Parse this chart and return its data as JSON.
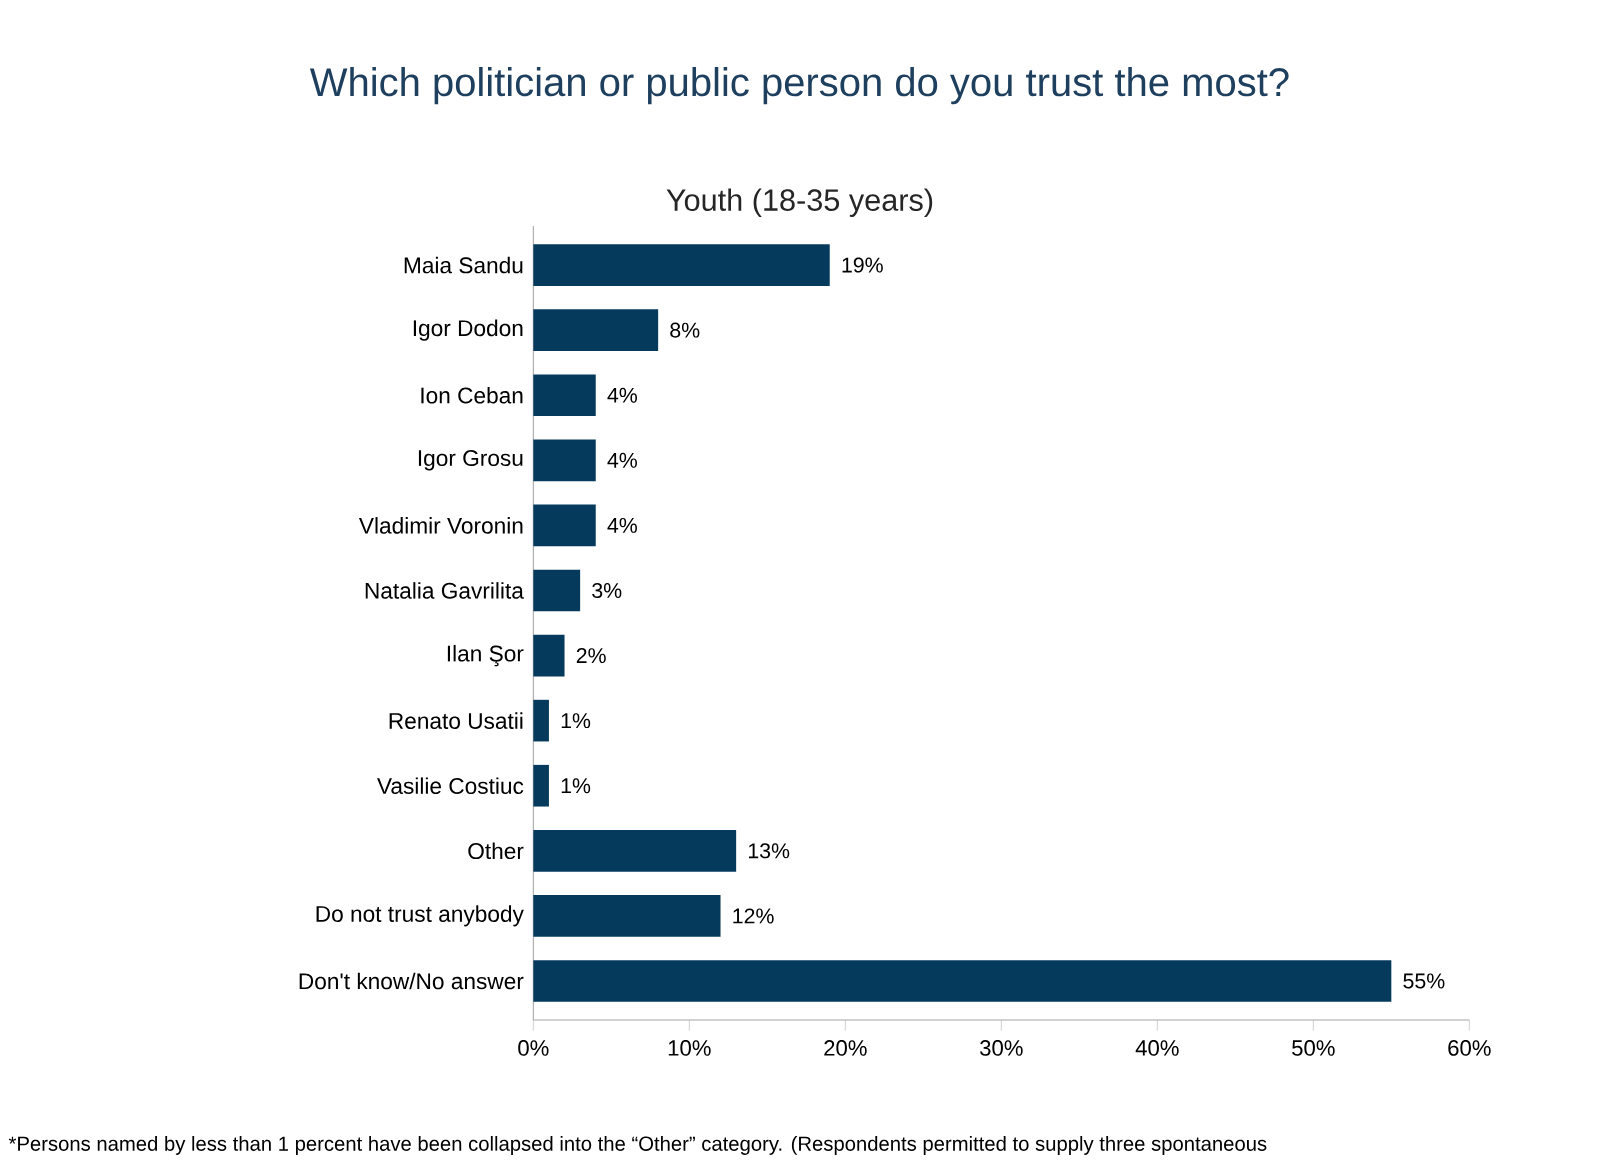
{
  "chart_data": {
    "type": "bar",
    "orientation": "horizontal",
    "title": "Which politician or public person do you trust the most?",
    "subtitle": "Youth (18-35 years)",
    "categories": [
      "Maia Sandu",
      "Igor Dodon",
      "Ion Ceban",
      "Igor Grosu",
      "Vladimir Voronin",
      "Natalia Gavrilita",
      "Ilan Şor",
      "Renato Usatii",
      "Vasilie Costiuc",
      "Other",
      "Do not trust anybody",
      "Don't know/No answer"
    ],
    "values": [
      19,
      8,
      4,
      4,
      4,
      3,
      2,
      1,
      1,
      13,
      12,
      55
    ],
    "value_labels": [
      "19%",
      "8%",
      "4%",
      "4%",
      "4%",
      "3%",
      "2%",
      "1%",
      "1%",
      "13%",
      "12%",
      "55%"
    ],
    "color": "#053a5c",
    "xlim": [
      0,
      60
    ],
    "xticks": [
      {
        "value": 0,
        "label": "0%"
      },
      {
        "value": 10,
        "label": "10%"
      },
      {
        "value": 20,
        "label": "20%"
      },
      {
        "value": 30,
        "label": "30%"
      },
      {
        "value": 40,
        "label": "40%"
      },
      {
        "value": 50,
        "label": "50%"
      },
      {
        "value": 60,
        "label": "60%"
      }
    ],
    "annotations": [
      "*Persons named by less than 1 percent have been collapsed into the “Other” category. (Respondents permitted to supply three spontaneous"
    ]
  }
}
